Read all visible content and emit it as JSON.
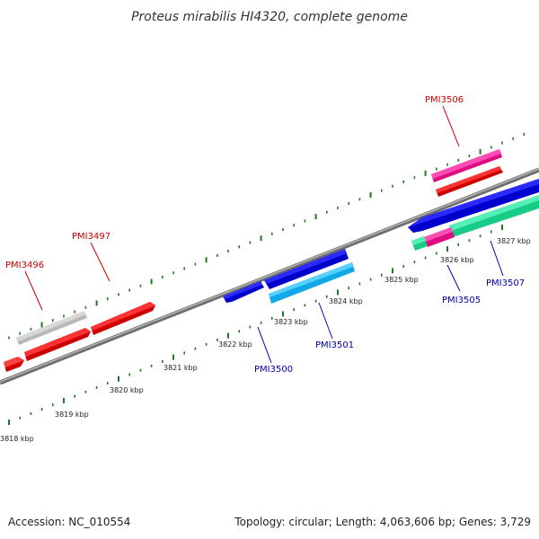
{
  "title": "Proteus mirabilis HI4320, complete genome",
  "footer": {
    "accession": "Accession: NC_010554",
    "summary": "Topology: circular; Length: 4,063,606 bp; Genes: 3,729"
  },
  "colors": {
    "background": "#ffffff",
    "backbone": "#8c8c8c",
    "tick": "#1f7a1f",
    "forward_label": "#cc0000",
    "reverse_label": "#0000b0"
  },
  "scale_labels": [
    "3818 kbp",
    "3819 kbp",
    "3820 kbp",
    "3821 kbp",
    "3822 kbp",
    "3823 kbp",
    "3824 kbp",
    "3825 kbp",
    "3826 kbp",
    "3827 kbp"
  ],
  "gene_labels": {
    "pmi3496": "PMI3496",
    "pmi3497": "PMI3497",
    "pmi3506": "PMI3506",
    "pmi3500": "PMI3500",
    "pmi3501": "PMI3501",
    "pmi3505": "PMI3505",
    "pmi3507": "PMI3507"
  },
  "genes": [
    {
      "id": "pmi3496",
      "strand": "forward",
      "color": "#ff0000"
    },
    {
      "id": "pmi3497",
      "strand": "forward",
      "color": "#ff0000"
    },
    {
      "id": "pmi3506",
      "strand": "forward",
      "color": "#ff1493"
    },
    {
      "id": "pmi3500",
      "strand": "reverse",
      "color": "#0000ee"
    },
    {
      "id": "pmi3501",
      "strand": "reverse",
      "color": "#22bfff"
    },
    {
      "id": "pmi3505",
      "strand": "reverse",
      "color": "#ff1493"
    },
    {
      "id": "pmi3507",
      "strand": "reverse",
      "color": "#2ee5a0"
    }
  ]
}
